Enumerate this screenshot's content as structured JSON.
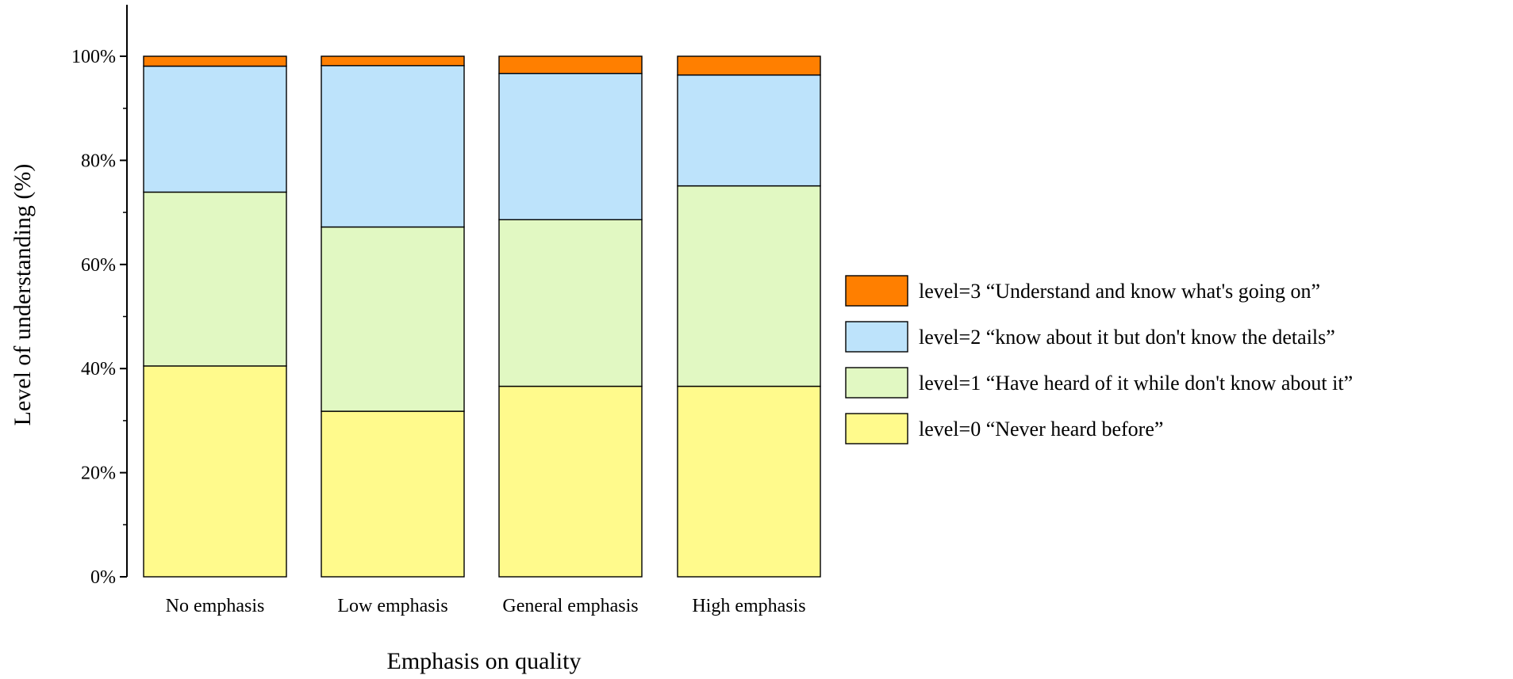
{
  "chart_data": {
    "type": "bar",
    "stacked": true,
    "title": "",
    "xlabel": "Emphasis on quality",
    "ylabel": "Level of understanding (%)",
    "ylim": [
      0,
      100
    ],
    "y_ticks": [
      "0%",
      "20%",
      "40%",
      "60%",
      "80%",
      "100%"
    ],
    "grid": false,
    "legend_position": "right",
    "categories": [
      "No emphasis",
      "Low emphasis",
      "General emphasis",
      "High emphasis"
    ],
    "series": [
      {
        "name": "level=0 “Never heard before”",
        "color": "#FFFA8C",
        "values": [
          40.5,
          31.8,
          36.6,
          36.6
        ]
      },
      {
        "name": "level=1 “Have heard of it while don't know about it”",
        "color": "#E1F8C2",
        "values": [
          33.4,
          35.4,
          32.0,
          38.5
        ]
      },
      {
        "name": "level=2 “know about it but don't know the details”",
        "color": "#BDE3FB",
        "values": [
          24.2,
          31.0,
          28.1,
          21.3
        ]
      },
      {
        "name": "level=3 “Understand and know what's going on”",
        "color": "#FF7F00",
        "values": [
          1.9,
          1.8,
          3.3,
          3.6
        ]
      }
    ]
  }
}
